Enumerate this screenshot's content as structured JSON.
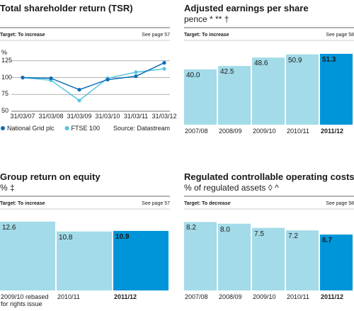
{
  "chart_data": [
    {
      "type": "line",
      "title": "Total shareholder return (TSR)",
      "target": "Target: To increase",
      "see_page": "See page 57",
      "y_label": "%",
      "categories": [
        "31/03/07",
        "31/03/08",
        "31/03/09",
        "31/03/10",
        "31/03/11",
        "31/03/12"
      ],
      "series": [
        {
          "name": "National Grid plc",
          "color": "#0e6eb5",
          "values": [
            100,
            99,
            82,
            97,
            102,
            122
          ]
        },
        {
          "name": "FTSE 100",
          "color": "#55c4df",
          "values": [
            100,
            96,
            66,
            99,
            108,
            113
          ]
        }
      ],
      "ylim": [
        50,
        130
      ],
      "yticks": [
        50,
        75,
        100,
        125
      ],
      "grid": true,
      "source": "Source: Datastream"
    },
    {
      "type": "bar",
      "title": "Adjusted earnings per share",
      "subtitle": "pence * ** †",
      "target": "Target: To increase",
      "see_page": "See page 58",
      "categories": [
        "2007/08",
        "2008/09",
        "2009/10",
        "2010/11",
        "2011/12"
      ],
      "values": [
        40.0,
        42.5,
        48.6,
        50.9,
        51.3
      ],
      "value_labels": [
        "40.0",
        "42.5",
        "48.6",
        "50.9",
        "51.3"
      ],
      "colors": [
        "#a3dbe8",
        "#a3dbe8",
        "#a3dbe8",
        "#a3dbe8",
        "#0095d9"
      ],
      "ylim": [
        0,
        60
      ]
    },
    {
      "type": "bar",
      "title": "Group return on equity",
      "subtitle": "% ‡",
      "target": "Target: To increase",
      "see_page": "See page 57",
      "categories": [
        "2009/10 rebased for rights issue",
        "2010/11",
        "2011/12"
      ],
      "values": [
        12.6,
        10.8,
        10.9
      ],
      "value_labels": [
        "12.6",
        "10.8",
        "10.9"
      ],
      "colors": [
        "#a3dbe8",
        "#a3dbe8",
        "#0095d9"
      ],
      "ylim": [
        0,
        14
      ]
    },
    {
      "type": "bar",
      "title": "Regulated controllable operating costs",
      "subtitle": "% of regulated assets ◊ ^",
      "target": "Target: To decrease",
      "see_page": "See page 58",
      "categories": [
        "2007/08",
        "2008/09",
        "2009/10",
        "2010/11",
        "2011/12"
      ],
      "values": [
        8.2,
        8.0,
        7.5,
        7.2,
        6.7
      ],
      "value_labels": [
        "8.2",
        "8.0",
        "7.5",
        "7.2",
        "6.7"
      ],
      "colors": [
        "#a3dbe8",
        "#a3dbe8",
        "#a3dbe8",
        "#a3dbe8",
        "#0095d9"
      ],
      "ylim": [
        0,
        9
      ]
    }
  ]
}
